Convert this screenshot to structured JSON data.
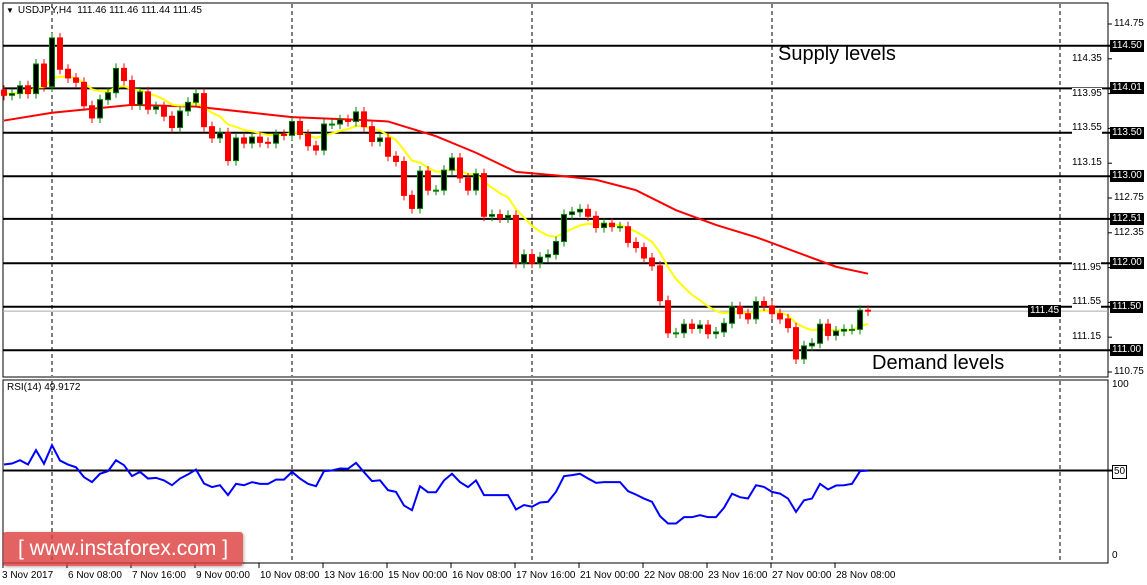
{
  "header": {
    "symbol": "USDJPY,H4",
    "ohlc": "111.46 111.46 111.44 111.45"
  },
  "annotations": {
    "supply": "Supply levels",
    "demand": "Demand levels"
  },
  "watermark": "[ www.instaforex.com ]",
  "rsi": {
    "label": "RSI(14) 49.9172",
    "axis": [
      "100",
      "50",
      "0"
    ],
    "level": 50,
    "values": [
      53.5,
      54.1,
      56,
      53.5,
      61.9,
      53.9,
      64.8,
      55.8,
      53.5,
      51.9,
      46.1,
      43.2,
      48.1,
      49.6,
      56,
      53.1,
      46.7,
      49.2,
      45.3,
      45.7,
      44.2,
      41.4,
      45.3,
      47.7,
      50.6,
      42.4,
      40.3,
      41.4,
      35.6,
      42.2,
      41.4,
      43.2,
      42.2,
      42.2,
      44.7,
      44.7,
      49.2,
      45.3,
      42.2,
      40.8,
      49.6,
      50,
      51.2,
      51,
      54.5,
      49,
      43.8,
      44.3,
      38.5,
      37.5,
      29.5,
      26.8,
      40.8,
      37.3,
      37.3,
      44.2,
      48.1,
      43.2,
      40.3,
      44.2,
      35.6,
      35.6,
      35.6,
      35.6,
      27.2,
      29.8,
      28.8,
      31.3,
      31.7,
      37.5,
      46.7,
      47.3,
      48.1,
      45.3,
      42.8,
      43.2,
      43.2,
      43.2,
      37.9,
      35.9,
      33.6,
      31.7,
      23.3,
      19,
      19,
      22.7,
      22.7,
      23.9,
      22.7,
      22.7,
      28.2,
      36.4,
      34.4,
      33.6,
      41.4,
      40.4,
      37.5,
      36.5,
      33.6,
      25.8,
      32.6,
      33.6,
      42.2,
      38.9,
      41.2,
      41.4,
      42.2,
      49.6,
      49.9
    ]
  },
  "price_axis": {
    "ticks": [
      "114.75",
      "114.35",
      "113.95",
      "113.55",
      "113.15",
      "112.75",
      "112.35",
      "111.95",
      "111.55",
      "111.15",
      "110.75"
    ],
    "levels": [
      "114.50",
      "114.01",
      "113.50",
      "113.00",
      "112.51",
      "112.00",
      "111.50",
      "111.00"
    ],
    "current": "111.45"
  },
  "time_axis": [
    "3 Nov 2017",
    "6 Nov 08:00",
    "7 Nov 16:00",
    "9 Nov 00:00",
    "10 Nov 08:00",
    "13 Nov 16:00",
    "15 Nov 00:00",
    "16 Nov 08:00",
    "17 Nov 16:00",
    "21 Nov 00:00",
    "22 Nov 08:00",
    "23 Nov 16:00",
    "27 Nov 00:00",
    "28 Nov 08:00"
  ],
  "colors": {
    "bull_border": "#008000",
    "bull_fill": "#000000",
    "bear": "#ff0000",
    "ma_fast": "#ffff00",
    "ma_slow": "#ff0000",
    "rsi": "#0000ff"
  },
  "chart_data": {
    "type": "candlestick",
    "first_open": 113.99,
    "closes": [
      113.93,
      113.95,
      114.04,
      113.95,
      114.29,
      114.03,
      114.59,
      114.23,
      114.13,
      114.08,
      113.81,
      113.67,
      113.88,
      113.96,
      114.24,
      114.1,
      113.82,
      113.97,
      113.77,
      113.8,
      113.69,
      113.56,
      113.75,
      113.85,
      113.95,
      113.57,
      113.44,
      113.5,
      113.18,
      113.44,
      113.38,
      113.45,
      113.39,
      113.38,
      113.48,
      113.47,
      113.63,
      113.48,
      113.35,
      113.3,
      113.6,
      113.6,
      113.65,
      113.63,
      113.74,
      113.57,
      113.4,
      113.44,
      113.23,
      113.17,
      112.78,
      112.63,
      113.06,
      112.84,
      112.84,
      113.07,
      113.21,
      112.98,
      112.84,
      113.03,
      112.54,
      112.56,
      112.52,
      112.55,
      112.0,
      112.1,
      112.0,
      112.07,
      112.1,
      112.25,
      112.56,
      112.59,
      112.62,
      112.54,
      112.41,
      112.46,
      112.42,
      112.42,
      112.24,
      112.18,
      112.06,
      111.97,
      111.57,
      111.2,
      111.2,
      111.3,
      111.25,
      111.29,
      111.19,
      111.21,
      111.31,
      111.5,
      111.42,
      111.36,
      111.56,
      111.51,
      111.42,
      111.36,
      111.26,
      110.9,
      111.05,
      111.08,
      111.3,
      111.17,
      111.22,
      111.24,
      111.24,
      111.46,
      111.45
    ],
    "ma_slow_points": [
      [
        0,
        113.64
      ],
      [
        6,
        113.73
      ],
      [
        16,
        113.82
      ],
      [
        24,
        113.8
      ],
      [
        36,
        113.68
      ],
      [
        44,
        113.65
      ],
      [
        48,
        113.63
      ],
      [
        54,
        113.46
      ],
      [
        59,
        113.27
      ],
      [
        64,
        113.05
      ],
      [
        69,
        113.01
      ],
      [
        74,
        112.96
      ],
      [
        79,
        112.84
      ],
      [
        84,
        112.61
      ],
      [
        89,
        112.44
      ],
      [
        94,
        112.3
      ],
      [
        99,
        112.13
      ],
      [
        104,
        111.96
      ],
      [
        108,
        111.88
      ]
    ],
    "ylim": [
      110.75,
      114.75
    ]
  }
}
